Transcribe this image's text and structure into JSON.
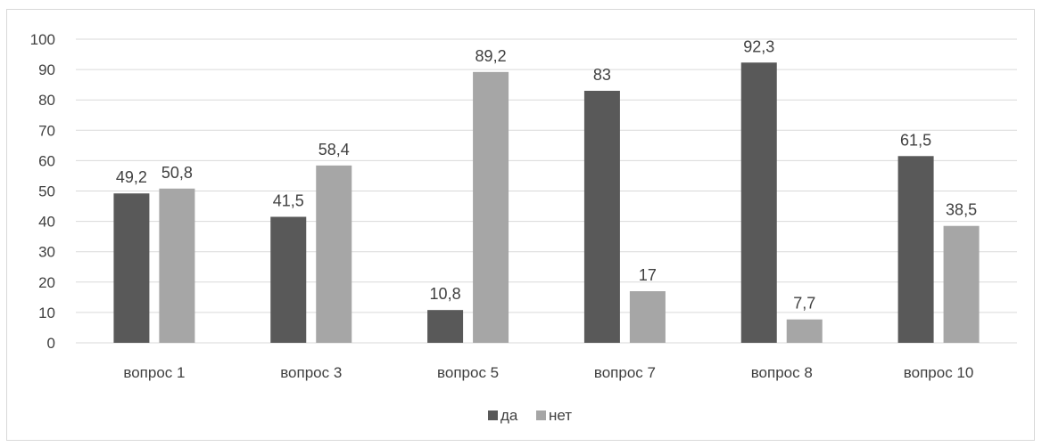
{
  "chart_data": {
    "type": "bar",
    "categories": [
      "вопрос 1",
      "вопрос 3",
      "вопрос 5",
      "вопрос 7",
      "вопрос 8",
      "вопрос 10"
    ],
    "series": [
      {
        "name": "да",
        "values": [
          49.2,
          41.5,
          10.8,
          83,
          92.3,
          61.5
        ],
        "color": "#595959",
        "labels": [
          "49,2",
          "41,5",
          "10,8",
          "83",
          "92,3",
          "61,5"
        ]
      },
      {
        "name": "нет",
        "values": [
          50.8,
          58.4,
          89.2,
          17,
          7.7,
          38.5
        ],
        "color": "#a6a6a6",
        "labels": [
          "50,8",
          "58,4",
          "89,2",
          "17",
          "7,7",
          "38,5"
        ]
      }
    ],
    "ylim": [
      0,
      100
    ],
    "yticks": [
      0,
      10,
      20,
      30,
      40,
      50,
      60,
      70,
      80,
      90,
      100
    ],
    "grid": true,
    "gridline_color": "#d9d9d9",
    "legend_position": "bottom"
  }
}
